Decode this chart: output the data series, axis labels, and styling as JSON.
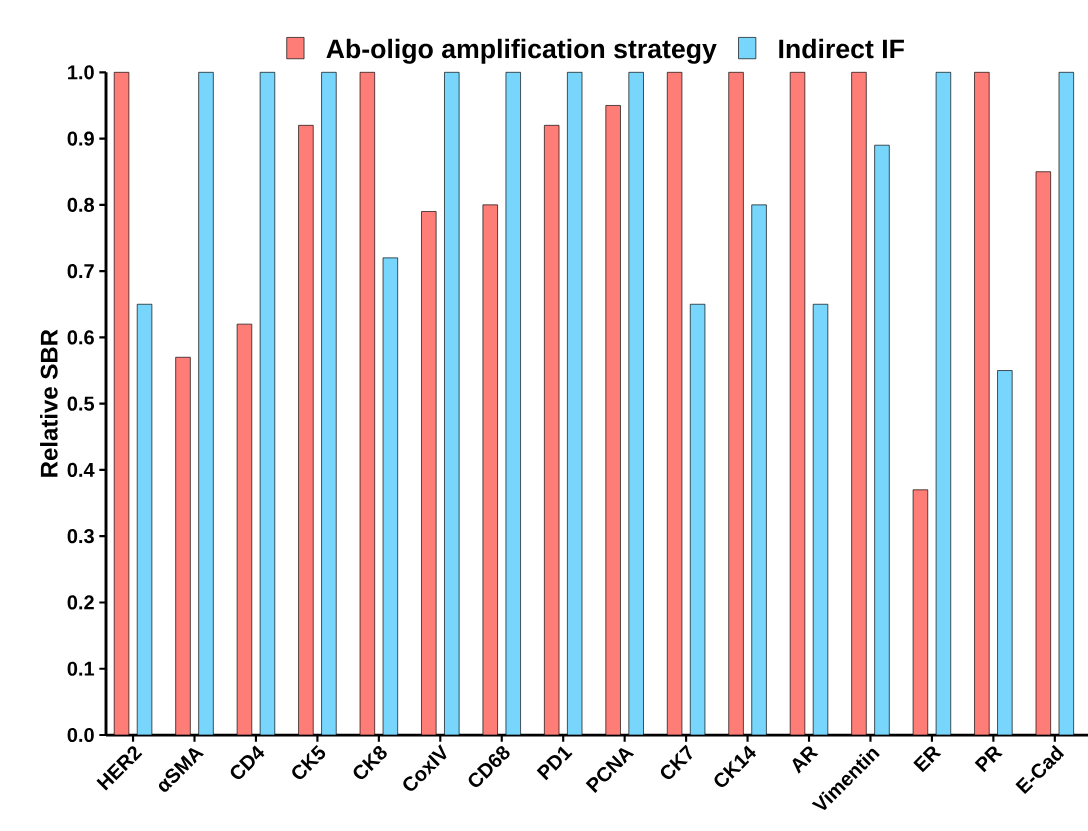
{
  "chart_data": {
    "type": "bar",
    "ylabel": "Relative SBR",
    "legend": "top",
    "categories": [
      "HER2",
      "αSMA",
      "CD4",
      "CK5",
      "CK8",
      "CoxIV",
      "CD68",
      "PD1",
      "PCNA",
      "CK7",
      "CK14",
      "AR",
      "Vimentin",
      "ER",
      "PR",
      "E-Cad"
    ],
    "series": [
      {
        "name": "Ab-oligo amplification strategy",
        "color": "#ff7d77",
        "values": [
          1.0,
          0.57,
          0.62,
          0.92,
          1.0,
          0.79,
          0.8,
          0.92,
          0.95,
          1.0,
          1.0,
          1.0,
          1.0,
          0.37,
          1.0,
          0.85
        ]
      },
      {
        "name": "Indirect IF",
        "color": "#78d5fb",
        "values": [
          0.65,
          1.0,
          1.0,
          1.0,
          0.72,
          1.0,
          1.0,
          1.0,
          1.0,
          0.65,
          0.8,
          0.65,
          0.89,
          1.0,
          0.55,
          1.0
        ]
      }
    ],
    "ylim": [
      0,
      1.0
    ],
    "yticks": [
      {
        "value": 0,
        "label": "0.0"
      },
      {
        "value": 0.1,
        "label": "0.1"
      },
      {
        "value": 0.2,
        "label": "0.2"
      },
      {
        "value": 0.3,
        "label": "0.3"
      },
      {
        "value": 0.4,
        "label": "0.4"
      },
      {
        "value": 0.5,
        "label": "0.5"
      },
      {
        "value": 0.6,
        "label": "0.6"
      },
      {
        "value": 0.7,
        "label": "0.7"
      },
      {
        "value": 0.8,
        "label": "0.8"
      },
      {
        "value": 0.9,
        "label": "0.9"
      },
      {
        "value": 1.0,
        "label": "1.0"
      }
    ]
  }
}
